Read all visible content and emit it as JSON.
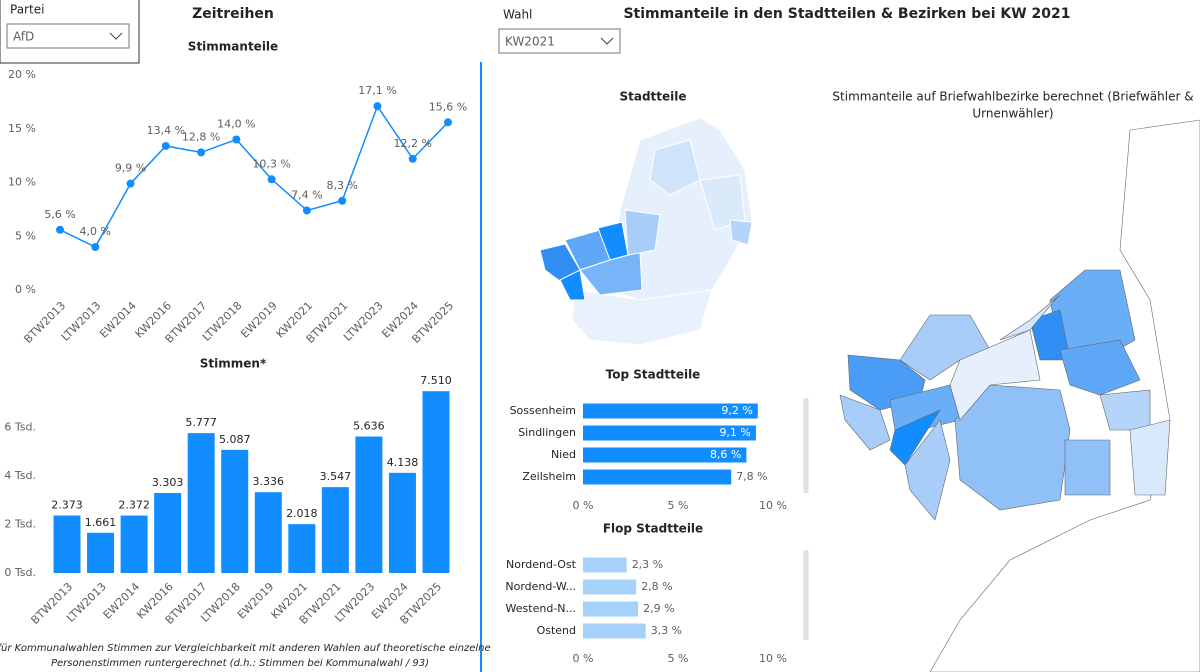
{
  "filters": [
    {
      "label": "Partei",
      "value": "AfD"
    },
    {
      "label": "Wahl",
      "value": "KW2021"
    }
  ],
  "headers": {
    "left": "Zeitreihen",
    "right": "Stimmanteile in den Stadtteilen & Bezirken bei KW 2021",
    "map_left": "Stadtteile",
    "map_right": [
      "Stimmanteile auf Briefwahlbezirke berechnet (Briefwähler &",
      "Urnenwähler)"
    ]
  },
  "footnote": [
    "* für Kommunalwahlen Stimmen zur Vergleichbarkeit mit anderen Wahlen auf theoretische einzelne",
    "Personenstimmen runtergerechnet (d.h.: Stimmen bei Kommunalwahl / 93)"
  ],
  "chart_data": [
    {
      "type": "line",
      "title": "Stimmanteile",
      "color": "#118dff",
      "categories": [
        "BTW2013",
        "LTW2013",
        "EW2014",
        "KW2016",
        "BTW2017",
        "LTW2018",
        "EW2019",
        "KW2021",
        "BTW2021",
        "LTW2023",
        "EW2024",
        "BTW2025"
      ],
      "values": [
        5.6,
        4.0,
        9.9,
        13.4,
        12.8,
        14.0,
        10.3,
        7.4,
        8.3,
        17.1,
        12.2,
        15.6
      ],
      "value_labels": [
        "5,6 %",
        "4,0 %",
        "9,9 %",
        "13,4 %",
        "12,8 %",
        "14,0 %",
        "10,3 %",
        "7,4 %",
        "8,3 %",
        "17,1 %",
        "12,2 %",
        "15,6 %"
      ],
      "ylim": [
        0,
        20
      ],
      "yticks": [
        {
          "value": 0,
          "label": "0 %"
        },
        {
          "value": 5,
          "label": "5 %"
        },
        {
          "value": 10,
          "label": "10 %"
        },
        {
          "value": 15,
          "label": "15 %"
        },
        {
          "value": 20,
          "label": "20 %"
        }
      ],
      "grid": false
    },
    {
      "type": "bar",
      "title": "Stimmen*",
      "color": "#118dff",
      "categories": [
        "BTW2013",
        "LTW2013",
        "EW2014",
        "KW2016",
        "BTW2017",
        "LTW2018",
        "EW2019",
        "KW2021",
        "BTW2021",
        "LTW2023",
        "EW2024",
        "BTW2025"
      ],
      "values": [
        2373,
        1661,
        2372,
        3303,
        5777,
        5087,
        3336,
        2018,
        3547,
        5636,
        4138,
        7510
      ],
      "value_labels": [
        "2.373",
        "1.661",
        "2.372",
        "3.303",
        "5.777",
        "5.087",
        "3.336",
        "2.018",
        "3.547",
        "5.636",
        "4.138",
        "7.510"
      ],
      "ylim": [
        0,
        7600
      ],
      "yticks": [
        {
          "value": 0,
          "label": "0 Tsd."
        },
        {
          "value": 2000,
          "label": "2 Tsd."
        },
        {
          "value": 4000,
          "label": "4 Tsd."
        },
        {
          "value": 6000,
          "label": "6 Tsd."
        }
      ],
      "grid": false
    },
    {
      "type": "hbar",
      "title": "Top Stadtteile",
      "color": "#118dff",
      "categories": [
        "Sossenheim",
        "Sindlingen",
        "Nied",
        "Zeilsheim"
      ],
      "values": [
        9.2,
        9.1,
        8.6,
        7.8
      ],
      "value_labels": [
        "9,2 %",
        "9,1 %",
        "8,6 %",
        "7,8 %"
      ],
      "xlim": [
        0,
        10
      ],
      "xticks": [
        {
          "value": 0,
          "label": "0 %"
        },
        {
          "value": 5,
          "label": "5 %"
        },
        {
          "value": 10,
          "label": "10 %"
        }
      ]
    },
    {
      "type": "hbar",
      "title": "Flop Stadtteile",
      "color": "#a6d1fb",
      "categories": [
        "Nordend-Ost",
        "Nordend-W...",
        "Westend-N...",
        "Ostend"
      ],
      "values": [
        2.3,
        2.8,
        2.9,
        3.3
      ],
      "value_labels": [
        "2,3 %",
        "2,8 %",
        "2,9 %",
        "3,3 %"
      ],
      "xlim": [
        0,
        10
      ],
      "xticks": [
        {
          "value": 0,
          "label": "0 %"
        },
        {
          "value": 5,
          "label": "5 %"
        },
        {
          "value": 10,
          "label": "10 %"
        }
      ]
    }
  ]
}
